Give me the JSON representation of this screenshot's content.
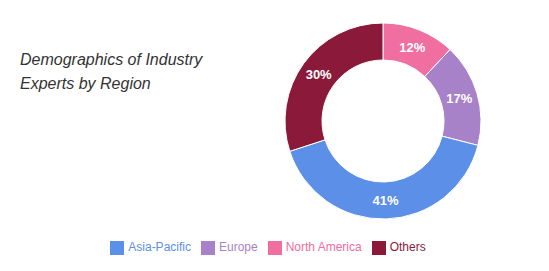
{
  "chart_data": {
    "type": "pie",
    "title": "Demographics of Industry\nExperts by Region",
    "categories": [
      "North America",
      "Europe",
      "Asia-Pacific",
      "Others"
    ],
    "values": [
      12,
      17,
      41,
      30
    ],
    "value_labels": [
      "12%",
      "17%",
      "41%",
      "30%"
    ],
    "colors": [
      "#F06EA0",
      "#A882C8",
      "#5B8FE8",
      "#8B1A3A"
    ],
    "data_labels": true,
    "legend": "bottom"
  }
}
